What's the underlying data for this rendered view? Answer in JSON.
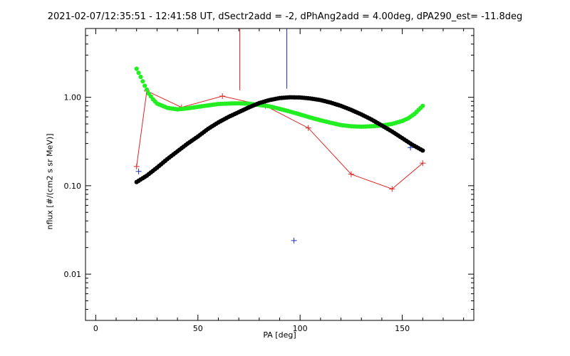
{
  "chart_data": {
    "type": "scatter",
    "title": "2021-02-07/12:35:51 - 12:41:58 UT, dSectr2add = -2, dPhAng2add = 4.00deg, dPA290_est= -11.8deg",
    "xlabel": "PA [deg]",
    "ylabel": "nflux [#/(cm2 s sr MeV)]",
    "xlim": [
      -5,
      185
    ],
    "ylim": [
      0.003,
      6
    ],
    "y_scale": "log",
    "xticks": [
      0,
      50,
      100,
      150
    ],
    "xtick_labels": [
      "0",
      "50",
      "100",
      "150"
    ],
    "yticks": [
      0.01,
      0.1,
      1.0
    ],
    "ytick_labels": [
      "0.01",
      "0.10",
      "1.00"
    ],
    "grid": false,
    "colors": {
      "red": "#dd2222",
      "blue": "#2233aa",
      "green": "#22ee22",
      "black": "#000000"
    },
    "series": [
      {
        "style": "red-line-plus",
        "x": [
          20,
          25,
          42,
          62,
          83,
          104,
          125,
          145,
          160
        ],
        "y": [
          0.165,
          1.18,
          0.77,
          1.03,
          0.8,
          0.45,
          0.135,
          0.092,
          0.18
        ]
      },
      {
        "style": "blue-plus",
        "x": [
          21,
          97,
          154
        ],
        "y": [
          0.145,
          0.024,
          0.27
        ]
      },
      {
        "style": "green-dots",
        "x": [
          20,
          22,
          24,
          26,
          28,
          30,
          35,
          40,
          45,
          50,
          55,
          60,
          65,
          70,
          75,
          80,
          85,
          90,
          95,
          100,
          105,
          110,
          115,
          120,
          125,
          130,
          135,
          140,
          145,
          150,
          153,
          156,
          158,
          160
        ],
        "y": [
          2.1,
          1.7,
          1.35,
          1.1,
          0.95,
          0.85,
          0.76,
          0.73,
          0.75,
          0.78,
          0.81,
          0.84,
          0.85,
          0.855,
          0.845,
          0.82,
          0.79,
          0.74,
          0.69,
          0.64,
          0.59,
          0.55,
          0.515,
          0.485,
          0.47,
          0.465,
          0.47,
          0.48,
          0.5,
          0.54,
          0.58,
          0.65,
          0.72,
          0.8
        ]
      },
      {
        "style": "black-dots",
        "x": [
          20,
          25,
          30,
          35,
          40,
          45,
          50,
          55,
          60,
          65,
          70,
          75,
          80,
          85,
          90,
          95,
          100,
          105,
          110,
          115,
          120,
          125,
          130,
          135,
          140,
          145,
          150,
          155,
          160
        ],
        "y": [
          0.11,
          0.13,
          0.16,
          0.2,
          0.245,
          0.3,
          0.36,
          0.44,
          0.52,
          0.6,
          0.68,
          0.77,
          0.86,
          0.93,
          0.98,
          1.0,
          0.995,
          0.97,
          0.93,
          0.87,
          0.8,
          0.72,
          0.64,
          0.56,
          0.48,
          0.41,
          0.345,
          0.29,
          0.25
        ]
      }
    ],
    "vertical_lines": [
      {
        "x": 70.5,
        "y_from": 1.2,
        "color": "red"
      },
      {
        "x": 93.5,
        "y_from": 1.25,
        "color": "blue"
      }
    ]
  }
}
